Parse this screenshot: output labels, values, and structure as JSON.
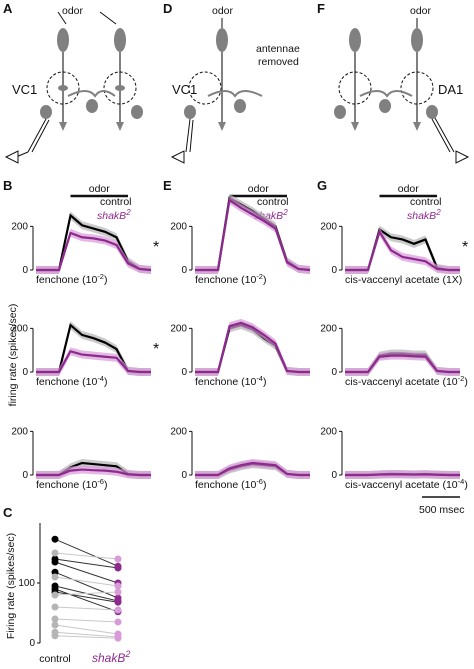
{
  "panels": {
    "A": {
      "label": "A",
      "odor": "odor",
      "glomerulus": "VC1"
    },
    "D": {
      "label": "D",
      "odor": "odor",
      "note_line1": "antennae",
      "note_line2": "removed",
      "glomerulus": "VC1"
    },
    "F": {
      "label": "F",
      "odor": "odor",
      "glomerulus": "DA1"
    },
    "B": {
      "label": "B"
    },
    "E": {
      "label": "E"
    },
    "G": {
      "label": "G"
    },
    "C": {
      "label": "C"
    }
  },
  "legend": {
    "control": "control",
    "shakB2_base": "shakB",
    "shakB2_sup": "2"
  },
  "shared": {
    "odor_bar_label": "odor",
    "ylabel": "firing rate (spikes/sec)",
    "scale_bar_label": "500 msec",
    "asterisk": "*",
    "yticks": [
      "0",
      "200"
    ]
  },
  "colors": {
    "control": "#000000",
    "shakB2": "#8e2a8e",
    "control_light": "#b5b5b5",
    "shakB2_light": "#d89ad8",
    "schematic": "#808080"
  },
  "chart_data": [
    {
      "type": "line",
      "panel": "B",
      "row": 1,
      "condition_base": "fenchone (10",
      "condition_exp": "-2",
      "ylim": [
        0,
        330
      ],
      "asterisk": true,
      "x": [
        0,
        0.3,
        0.6,
        0.9,
        1.2,
        1.5,
        1.8,
        2.1,
        2.4,
        2.7,
        3.0
      ],
      "series": [
        {
          "name": "control",
          "values": [
            0,
            0,
            0,
            250,
            205,
            190,
            175,
            150,
            40,
            5,
            0
          ]
        },
        {
          "name": "shakB2",
          "values": [
            0,
            0,
            0,
            170,
            150,
            145,
            135,
            115,
            30,
            5,
            0
          ]
        }
      ]
    },
    {
      "type": "line",
      "panel": "B",
      "row": 2,
      "condition_base": "fenchone (10",
      "condition_exp": "-4",
      "ylim": [
        0,
        330
      ],
      "asterisk": true,
      "x": [
        0,
        0.3,
        0.6,
        0.9,
        1.2,
        1.5,
        1.8,
        2.1,
        2.4,
        2.7,
        3.0
      ],
      "series": [
        {
          "name": "control",
          "values": [
            0,
            0,
            0,
            215,
            170,
            155,
            135,
            105,
            5,
            0,
            0
          ]
        },
        {
          "name": "shakB2",
          "values": [
            0,
            0,
            0,
            95,
            80,
            75,
            70,
            65,
            5,
            0,
            0
          ]
        }
      ]
    },
    {
      "type": "line",
      "panel": "B",
      "row": 3,
      "condition_base": "fenchone (10",
      "condition_exp": "-6",
      "ylim": [
        0,
        330
      ],
      "asterisk": false,
      "x": [
        0,
        0.3,
        0.6,
        0.9,
        1.2,
        1.5,
        1.8,
        2.1,
        2.4,
        2.7,
        3.0
      ],
      "series": [
        {
          "name": "control",
          "values": [
            0,
            0,
            0,
            35,
            55,
            50,
            45,
            40,
            5,
            0,
            0
          ]
        },
        {
          "name": "shakB2",
          "values": [
            0,
            0,
            0,
            20,
            25,
            22,
            20,
            15,
            3,
            0,
            0
          ]
        }
      ]
    },
    {
      "type": "line",
      "panel": "E",
      "row": 1,
      "condition_base": "fenchone (10",
      "condition_exp": "-2",
      "ylim": [
        0,
        330
      ],
      "asterisk": false,
      "x": [
        0,
        0.3,
        0.6,
        0.9,
        1.2,
        1.5,
        1.8,
        2.1,
        2.4,
        2.7,
        3.0
      ],
      "series": [
        {
          "name": "control",
          "values": [
            0,
            0,
            0,
            330,
            300,
            270,
            235,
            200,
            40,
            5,
            0
          ]
        },
        {
          "name": "shakB2",
          "values": [
            0,
            0,
            0,
            320,
            285,
            255,
            225,
            190,
            35,
            5,
            0
          ]
        }
      ]
    },
    {
      "type": "line",
      "panel": "E",
      "row": 2,
      "condition_base": "fenchone (10",
      "condition_exp": "-4",
      "ylim": [
        0,
        330
      ],
      "asterisk": false,
      "x": [
        0,
        0.3,
        0.6,
        0.9,
        1.2,
        1.5,
        1.8,
        2.1,
        2.4,
        2.7,
        3.0
      ],
      "series": [
        {
          "name": "control",
          "values": [
            0,
            0,
            0,
            200,
            215,
            195,
            155,
            120,
            5,
            0,
            0
          ]
        },
        {
          "name": "shakB2",
          "values": [
            0,
            0,
            0,
            210,
            225,
            205,
            170,
            130,
            5,
            0,
            0
          ]
        }
      ]
    },
    {
      "type": "line",
      "panel": "E",
      "row": 3,
      "condition_base": "fenchone (10",
      "condition_exp": "-6",
      "ylim": [
        0,
        330
      ],
      "asterisk": false,
      "x": [
        0,
        0.3,
        0.6,
        0.9,
        1.2,
        1.5,
        1.8,
        2.1,
        2.4,
        2.7,
        3.0
      ],
      "series": [
        {
          "name": "control",
          "values": [
            0,
            0,
            0,
            25,
            40,
            50,
            45,
            40,
            5,
            0,
            0
          ]
        },
        {
          "name": "shakB2",
          "values": [
            0,
            0,
            0,
            30,
            45,
            55,
            50,
            45,
            5,
            0,
            0
          ]
        }
      ]
    },
    {
      "type": "line",
      "panel": "G",
      "row": 1,
      "condition_base": "cis-vaccenyl acetate (1X)",
      "condition_exp": "",
      "ylim": [
        0,
        330
      ],
      "asterisk": true,
      "x": [
        0,
        0.3,
        0.6,
        0.9,
        1.2,
        1.5,
        1.8,
        2.1,
        2.4,
        2.7,
        3.0
      ],
      "series": [
        {
          "name": "control",
          "values": [
            0,
            0,
            0,
            185,
            150,
            140,
            120,
            140,
            10,
            0,
            0
          ]
        },
        {
          "name": "shakB2",
          "values": [
            0,
            0,
            0,
            175,
            90,
            60,
            50,
            40,
            5,
            0,
            0
          ]
        }
      ]
    },
    {
      "type": "line",
      "panel": "G",
      "row": 2,
      "condition_base": "cis-vaccenyl acetate (10",
      "condition_exp": "-2",
      "ylim": [
        0,
        330
      ],
      "asterisk": false,
      "x": [
        0,
        0.3,
        0.6,
        0.9,
        1.2,
        1.5,
        1.8,
        2.1,
        2.4,
        2.7,
        3.0
      ],
      "series": [
        {
          "name": "control",
          "values": [
            0,
            0,
            0,
            75,
            85,
            85,
            80,
            80,
            5,
            0,
            0
          ]
        },
        {
          "name": "shakB2",
          "values": [
            0,
            0,
            0,
            70,
            75,
            75,
            72,
            70,
            5,
            0,
            0
          ]
        }
      ]
    },
    {
      "type": "line",
      "panel": "G",
      "row": 3,
      "condition_base": "cis-vaccenyl acetate (10",
      "condition_exp": "-4",
      "ylim": [
        0,
        330
      ],
      "asterisk": false,
      "x": [
        0,
        0.3,
        0.6,
        0.9,
        1.2,
        1.5,
        1.8,
        2.1,
        2.4,
        2.7,
        3.0
      ],
      "series": [
        {
          "name": "control",
          "values": [
            0,
            0,
            0,
            3,
            5,
            4,
            3,
            4,
            2,
            0,
            0
          ]
        },
        {
          "name": "shakB2",
          "values": [
            0,
            0,
            0,
            2,
            3,
            3,
            2,
            3,
            1,
            0,
            0
          ]
        }
      ]
    },
    {
      "type": "scatter",
      "panel": "C",
      "ylim": [
        0,
        200
      ],
      "yticks": [
        "0",
        "100"
      ],
      "ylabel": "Firing rate (spikes/sec)",
      "categories": [
        "control",
        "shakB2"
      ],
      "pairs": [
        {
          "control": 173,
          "shakB2": 128,
          "significant": true
        },
        {
          "control": 140,
          "shakB2": 125,
          "significant": true
        },
        {
          "control": 135,
          "shakB2": 100,
          "significant": true
        },
        {
          "control": 118,
          "shakB2": 75,
          "significant": true
        },
        {
          "control": 95,
          "shakB2": 70,
          "significant": true
        },
        {
          "control": 90,
          "shakB2": 52,
          "significant": true
        },
        {
          "control": 85,
          "shakB2": 68,
          "significant": true
        },
        {
          "control": 150,
          "shakB2": 140,
          "significant": false
        },
        {
          "control": 110,
          "shakB2": 95,
          "significant": false
        },
        {
          "control": 80,
          "shakB2": 85,
          "significant": false
        },
        {
          "control": 60,
          "shakB2": 55,
          "significant": false
        },
        {
          "control": 40,
          "shakB2": 35,
          "significant": false
        },
        {
          "control": 30,
          "shakB2": 15,
          "significant": false
        },
        {
          "control": 18,
          "shakB2": 10,
          "significant": false
        },
        {
          "control": 12,
          "shakB2": 8,
          "significant": false
        }
      ]
    }
  ]
}
